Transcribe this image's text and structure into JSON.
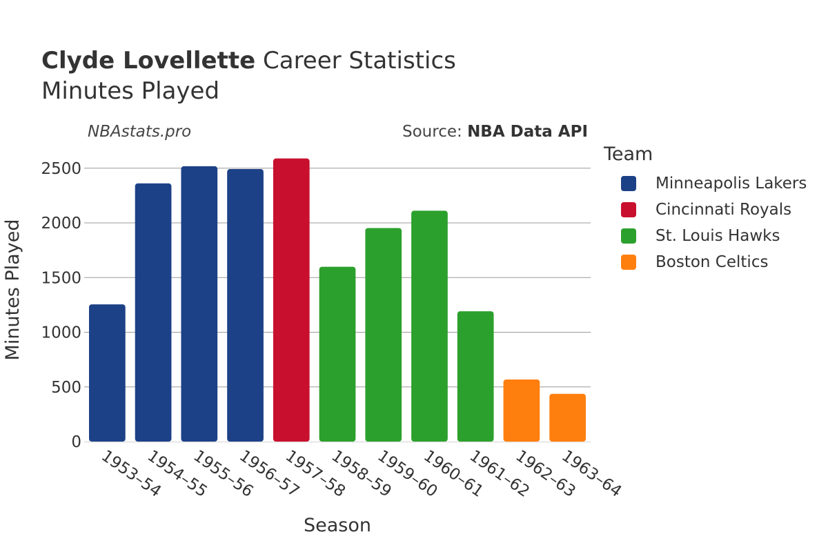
{
  "header": {
    "title_bold": "Clyde Lovellette",
    "title_rest": " Career Statistics",
    "subtitle": "Minutes Played",
    "watermark": "NBAstats.pro",
    "source_prefix": "Source: ",
    "source_bold": "NBA Data API"
  },
  "legend": {
    "title": "Team",
    "items": [
      {
        "label": "Minneapolis Lakers",
        "color": "#1c4187"
      },
      {
        "label": "Cincinnati Royals",
        "color": "#c8102e"
      },
      {
        "label": "St. Louis Hawks",
        "color": "#2ca02c"
      },
      {
        "label": "Boston Celtics",
        "color": "#ff7f0e"
      }
    ]
  },
  "chart_data": {
    "type": "bar",
    "title": "Clyde Lovellette Career Statistics",
    "subtitle": "Minutes Played",
    "xlabel": "Season",
    "ylabel": "Minutes Played",
    "ylim": [
      0,
      2650
    ],
    "yticks": [
      0,
      500,
      1000,
      1500,
      2000,
      2500
    ],
    "grid": true,
    "legend_position": "right",
    "categories": [
      "1953–54",
      "1954–55",
      "1955–56",
      "1956–57",
      "1957–58",
      "1958–59",
      "1959–60",
      "1960–61",
      "1961–62",
      "1962–63",
      "1963–64"
    ],
    "values": [
      1255,
      2361,
      2518,
      2492,
      2589,
      1599,
      1953,
      2111,
      1192,
      568,
      437
    ],
    "teams": [
      "Minneapolis Lakers",
      "Minneapolis Lakers",
      "Minneapolis Lakers",
      "Minneapolis Lakers",
      "Cincinnati Royals",
      "St. Louis Hawks",
      "St. Louis Hawks",
      "St. Louis Hawks",
      "St. Louis Hawks",
      "Boston Celtics",
      "Boston Celtics"
    ]
  }
}
